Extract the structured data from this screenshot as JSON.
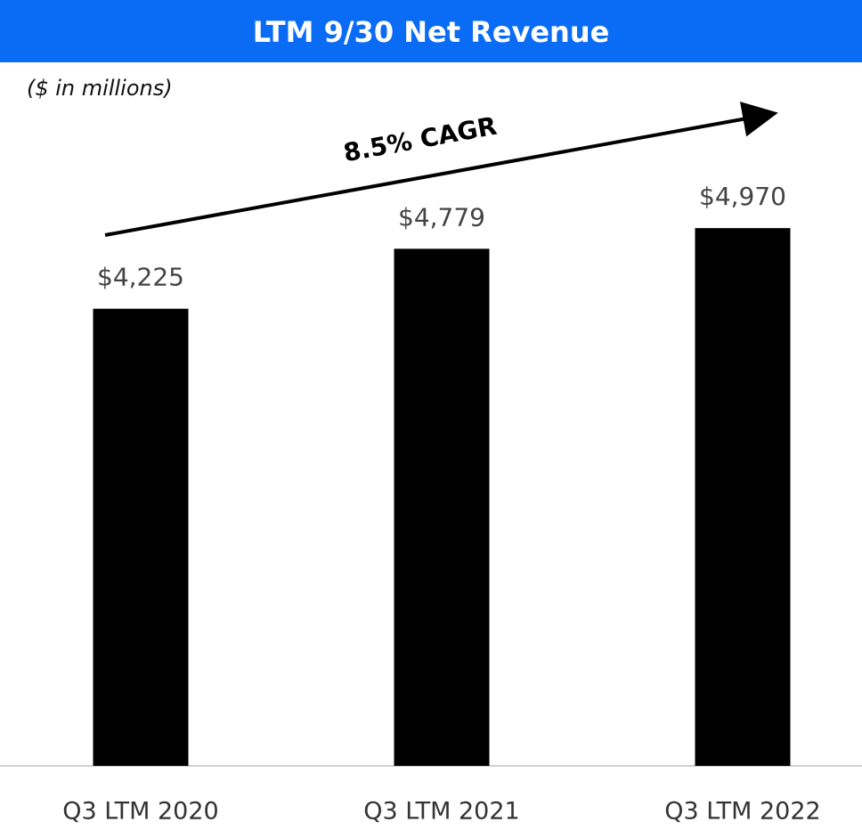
{
  "chart_data": {
    "type": "bar",
    "title": "LTM 9/30 Net Revenue",
    "subtitle": "($ in millions)",
    "annotation": "8.5% CAGR",
    "categories": [
      "Q3 LTM 2020",
      "Q3 LTM 2021",
      "Q3 LTM 2022"
    ],
    "values": [
      4225,
      4779,
      4970
    ],
    "value_labels": [
      "$4,225",
      "$4,779",
      "$4,970"
    ],
    "color": "#000000",
    "ylim": [
      0,
      5000
    ]
  }
}
